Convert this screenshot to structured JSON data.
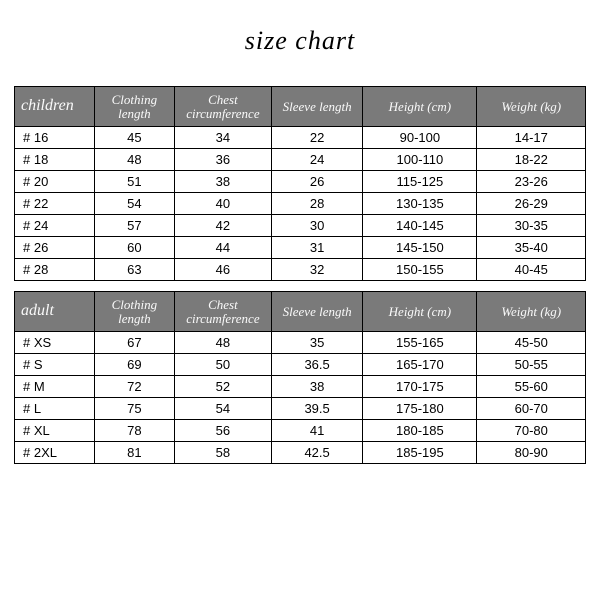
{
  "title": "size chart",
  "header_bg": "#7a7a7a",
  "header_fg": "#fafafa",
  "row_bg": "#ffffff",
  "border_color": "#000000",
  "children": {
    "group_label": "children",
    "columns": [
      "Clothing length",
      "Chest circumference",
      "Sleeve length",
      "Height (cm)",
      "Weight (kg)"
    ],
    "rows": [
      [
        "# 16",
        "45",
        "34",
        "22",
        "90-100",
        "14-17"
      ],
      [
        "# 18",
        "48",
        "36",
        "24",
        "100-110",
        "18-22"
      ],
      [
        "# 20",
        "51",
        "38",
        "26",
        "115-125",
        "23-26"
      ],
      [
        "# 22",
        "54",
        "40",
        "28",
        "130-135",
        "26-29"
      ],
      [
        "# 24",
        "57",
        "42",
        "30",
        "140-145",
        "30-35"
      ],
      [
        "# 26",
        "60",
        "44",
        "31",
        "145-150",
        "35-40"
      ],
      [
        "# 28",
        "63",
        "46",
        "32",
        "150-155",
        "40-45"
      ]
    ]
  },
  "adult": {
    "group_label": "adult",
    "columns": [
      "Clothing length",
      "Chest circumference",
      "Sleeve length",
      "Height (cm)",
      "Weight (kg)"
    ],
    "rows": [
      [
        "# XS",
        "67",
        "48",
        "35",
        "155-165",
        "45-50"
      ],
      [
        "# S",
        "69",
        "50",
        "36.5",
        "165-170",
        "50-55"
      ],
      [
        "# M",
        "72",
        "52",
        "38",
        "170-175",
        "55-60"
      ],
      [
        "# L",
        "75",
        "54",
        "39.5",
        "175-180",
        "60-70"
      ],
      [
        "# XL",
        "78",
        "56",
        "41",
        "180-185",
        "70-80"
      ],
      [
        "# 2XL",
        "81",
        "58",
        "42.5",
        "185-195",
        "80-90"
      ]
    ]
  }
}
